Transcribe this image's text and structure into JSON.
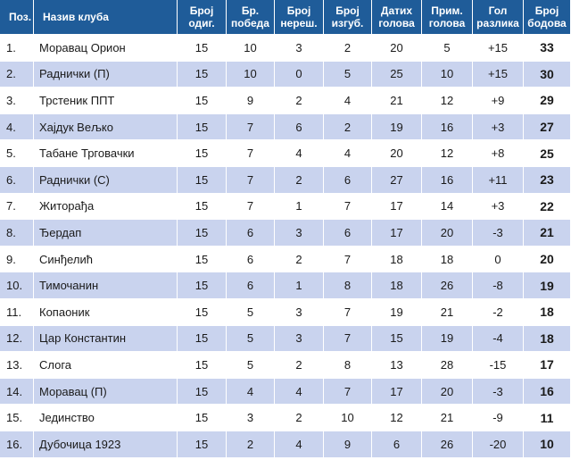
{
  "headers": {
    "pos": "Поз.",
    "club": "Назив клуба",
    "played": [
      "Број",
      "одиг."
    ],
    "wins": [
      "Бр.",
      "победа"
    ],
    "draws": [
      "Број",
      "нереш."
    ],
    "losses": [
      "Број",
      "изгуб."
    ],
    "gf": [
      "Датих",
      "голова"
    ],
    "ga": [
      "Прим.",
      "голова"
    ],
    "gd": [
      "Гол",
      "разлика"
    ],
    "pts": [
      "Број",
      "бодова"
    ]
  },
  "rows": [
    {
      "pos": "1.",
      "club": "Моравац Орион",
      "played": "15",
      "wins": "10",
      "draws": "3",
      "losses": "2",
      "gf": "20",
      "ga": "5",
      "gd": "+15",
      "pts": "33"
    },
    {
      "pos": "2.",
      "club": "Раднички (П)",
      "played": "15",
      "wins": "10",
      "draws": "0",
      "losses": "5",
      "gf": "25",
      "ga": "10",
      "gd": "+15",
      "pts": "30"
    },
    {
      "pos": "3.",
      "club": "Трстеник ППТ",
      "played": "15",
      "wins": "9",
      "draws": "2",
      "losses": "4",
      "gf": "21",
      "ga": "12",
      "gd": "+9",
      "pts": "29"
    },
    {
      "pos": "4.",
      "club": "Хајдук Вељко",
      "played": "15",
      "wins": "7",
      "draws": "6",
      "losses": "2",
      "gf": "19",
      "ga": "16",
      "gd": "+3",
      "pts": "27"
    },
    {
      "pos": "5.",
      "club": "Табане Трговачки",
      "played": "15",
      "wins": "7",
      "draws": "4",
      "losses": "4",
      "gf": "20",
      "ga": "12",
      "gd": "+8",
      "pts": "25"
    },
    {
      "pos": "6.",
      "club": "Раднички (С)",
      "played": "15",
      "wins": "7",
      "draws": "2",
      "losses": "6",
      "gf": "27",
      "ga": "16",
      "gd": "+11",
      "pts": "23"
    },
    {
      "pos": "7.",
      "club": "Житорађа",
      "played": "15",
      "wins": "7",
      "draws": "1",
      "losses": "7",
      "gf": "17",
      "ga": "14",
      "gd": "+3",
      "pts": "22"
    },
    {
      "pos": "8.",
      "club": "Ђердап",
      "played": "15",
      "wins": "6",
      "draws": "3",
      "losses": "6",
      "gf": "17",
      "ga": "20",
      "gd": "-3",
      "pts": "21"
    },
    {
      "pos": "9.",
      "club": "Синђелић",
      "played": "15",
      "wins": "6",
      "draws": "2",
      "losses": "7",
      "gf": "18",
      "ga": "18",
      "gd": "0",
      "pts": "20"
    },
    {
      "pos": "10.",
      "club": "Тимочанин",
      "played": "15",
      "wins": "6",
      "draws": "1",
      "losses": "8",
      "gf": "18",
      "ga": "26",
      "gd": "-8",
      "pts": "19"
    },
    {
      "pos": "11.",
      "club": "Копаоник",
      "played": "15",
      "wins": "5",
      "draws": "3",
      "losses": "7",
      "gf": "19",
      "ga": "21",
      "gd": "-2",
      "pts": "18"
    },
    {
      "pos": "12.",
      "club": "Цар Константин",
      "played": "15",
      "wins": "5",
      "draws": "3",
      "losses": "7",
      "gf": "15",
      "ga": "19",
      "gd": "-4",
      "pts": "18"
    },
    {
      "pos": "13.",
      "club": "Слога",
      "played": "15",
      "wins": "5",
      "draws": "2",
      "losses": "8",
      "gf": "13",
      "ga": "28",
      "gd": "-15",
      "pts": "17"
    },
    {
      "pos": "14.",
      "club": "Моравац (П)",
      "played": "15",
      "wins": "4",
      "draws": "4",
      "losses": "7",
      "gf": "17",
      "ga": "20",
      "gd": "-3",
      "pts": "16"
    },
    {
      "pos": "15.",
      "club": "Јединство",
      "played": "15",
      "wins": "3",
      "draws": "2",
      "losses": "10",
      "gf": "12",
      "ga": "21",
      "gd": "-9",
      "pts": "11"
    },
    {
      "pos": "16.",
      "club": "Дубочица 1923",
      "played": "15",
      "wins": "2",
      "draws": "4",
      "losses": "9",
      "gf": "6",
      "ga": "26",
      "gd": "-20",
      "pts": "10"
    }
  ],
  "colors": {
    "header_bg": "#1f5c99",
    "header_text": "#ffffff",
    "row_alt_bg": "#c9d3ee",
    "row_bg": "#ffffff"
  }
}
